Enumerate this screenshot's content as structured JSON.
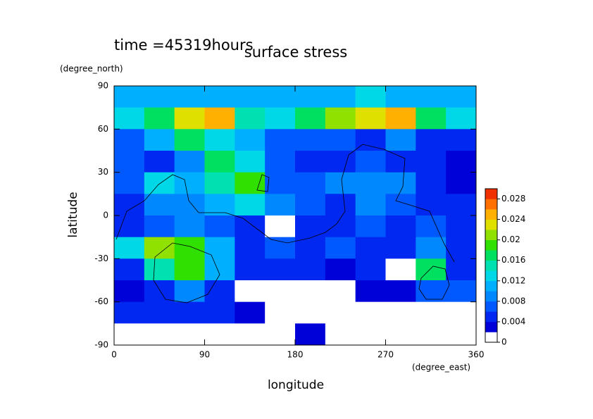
{
  "chart_data": {
    "type": "contour",
    "title": "surface stress",
    "subtitle": "time =45319hours",
    "xlabel": "longitude",
    "ylabel": "latitude",
    "xunit": "(degree_east)",
    "yunit": "(degree_north)",
    "xlim": [
      0,
      360
    ],
    "ylim": [
      -90,
      90
    ],
    "xticks": [
      0,
      90,
      180,
      270,
      360
    ],
    "yticks": [
      -90,
      -60,
      -30,
      0,
      30,
      60,
      90
    ],
    "zlim": [
      0,
      0.03
    ],
    "zticks": [
      0,
      0.004,
      0.008,
      0.012,
      0.016,
      0.02,
      0.024,
      0.028
    ],
    "colors": [
      "#ffffff",
      "#0000d8",
      "#0028f0",
      "#0058ff",
      "#0088ff",
      "#00b0ff",
      "#00d8e8",
      "#00e0b0",
      "#00e060",
      "#30e000",
      "#90e000",
      "#e0e000",
      "#ffb000",
      "#ff7000",
      "#f03000"
    ],
    "x": [
      15,
      45,
      75,
      105,
      135,
      165,
      195,
      225,
      255,
      285,
      315,
      345
    ],
    "y": [
      82.5,
      67.5,
      52.5,
      37.5,
      22.5,
      7.5,
      -7.5,
      -22.5,
      -37.5,
      -52.5,
      -67.5,
      -82.5
    ],
    "z": [
      [
        0.01,
        0.01,
        0.01,
        0.01,
        0.01,
        0.01,
        0.01,
        0.01,
        0.012,
        0.01,
        0.01,
        0.01
      ],
      [
        0.012,
        0.016,
        0.022,
        0.024,
        0.014,
        0.012,
        0.016,
        0.02,
        0.022,
        0.024,
        0.016,
        0.012
      ],
      [
        0.006,
        0.01,
        0.016,
        0.012,
        0.01,
        0.006,
        0.006,
        0.006,
        0.004,
        0.008,
        0.004,
        0.004
      ],
      [
        0.006,
        0.004,
        0.008,
        0.016,
        0.012,
        0.006,
        0.004,
        0.004,
        0.006,
        0.004,
        0.004,
        0.002
      ],
      [
        0.006,
        0.012,
        0.01,
        0.014,
        0.018,
        0.006,
        0.006,
        0.008,
        0.008,
        0.008,
        0.004,
        0.002
      ],
      [
        0.004,
        0.008,
        0.008,
        0.01,
        0.012,
        0.008,
        0.006,
        0.004,
        0.008,
        0.006,
        0.004,
        0.004
      ],
      [
        0.004,
        0.006,
        0.008,
        0.006,
        0.004,
        0,
        0.004,
        0.004,
        0.006,
        0.004,
        0.006,
        0.004
      ],
      [
        0.012,
        0.02,
        0.018,
        0.01,
        0.004,
        0.006,
        0.004,
        0.006,
        0.004,
        0.004,
        0.008,
        0.004
      ],
      [
        0.004,
        0.014,
        0.018,
        0.01,
        0.004,
        0.004,
        0.004,
        0.002,
        0.004,
        0,
        0.016,
        0.004
      ],
      [
        0.002,
        0.004,
        0.008,
        0.004,
        0,
        0,
        0,
        0,
        0.002,
        0.002,
        0.006,
        0.006
      ],
      [
        0.004,
        0.004,
        0.004,
        0.004,
        0.002,
        0,
        0,
        0,
        0,
        0,
        0,
        0
      ],
      [
        0,
        0,
        0,
        0,
        0,
        0,
        0.002,
        0,
        0,
        0,
        0,
        0
      ]
    ]
  }
}
